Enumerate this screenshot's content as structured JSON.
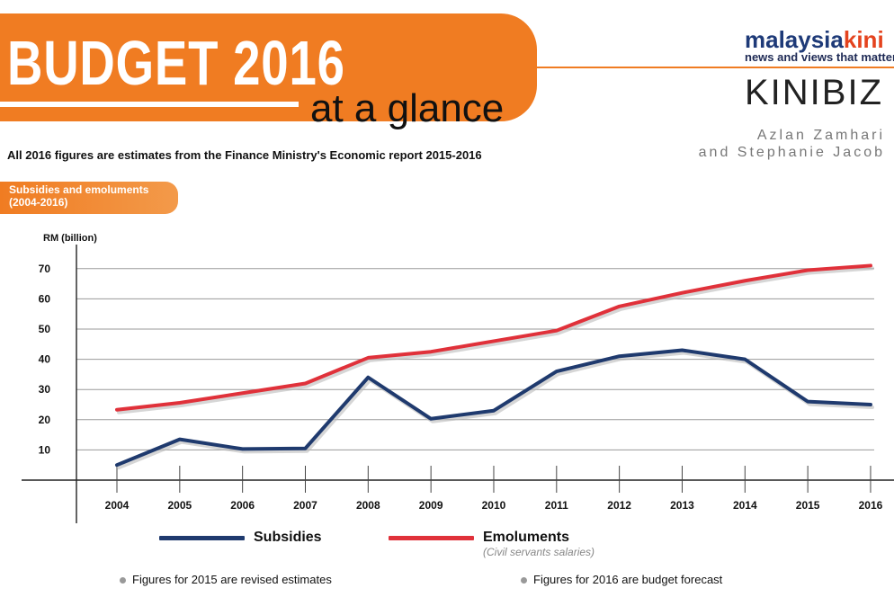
{
  "header": {
    "title": "BUDGET 2016",
    "subtitle": "at a glance",
    "note": "All 2016 figures are estimates from the Finance Ministry's Economic report 2015-2016"
  },
  "branding": {
    "malaysia": "malaysia",
    "kini": "kini",
    "tagline": "news and views that matter",
    "kinibiz": "KINIBIZ"
  },
  "authors": {
    "line1": "Azlan Zamhari",
    "line2": "and Stephanie Jacob"
  },
  "section": {
    "title": "Subsidies and emoluments",
    "range": "(2004-2016)"
  },
  "chart_data": {
    "type": "line",
    "title": "Subsidies and emoluments (2004-2016)",
    "ylabel": "RM (billion)",
    "xlabel": "",
    "ylim": [
      0,
      75
    ],
    "yticks": [
      10,
      20,
      30,
      40,
      50,
      60,
      70
    ],
    "grid": true,
    "categories": [
      "2004",
      "2005",
      "2006",
      "2007",
      "2008",
      "2009",
      "2010",
      "2011",
      "2012",
      "2013",
      "2014",
      "2015",
      "2016"
    ],
    "series": [
      {
        "name": "Subsidies",
        "color": "#1f3a6e",
        "values": [
          5.0,
          13.5,
          10.3,
          10.5,
          34.0,
          20.3,
          23.0,
          36.0,
          41.0,
          43.0,
          40.0,
          26.0,
          25.0
        ]
      },
      {
        "name": "Emoluments",
        "sublabel": "(Civil servants salaries)",
        "color": "#e0313a",
        "values": [
          23.3,
          25.6,
          28.8,
          32.0,
          40.5,
          42.5,
          46.0,
          49.5,
          57.5,
          62.0,
          66.0,
          69.5,
          71.0
        ]
      }
    ]
  },
  "footnotes": {
    "left": "Figures for 2015 are revised estimates",
    "right": "Figures for 2016 are budget forecast"
  },
  "colors": {
    "accent": "#f07c22",
    "subsidies": "#1f3a6e",
    "emoluments": "#e0313a"
  }
}
